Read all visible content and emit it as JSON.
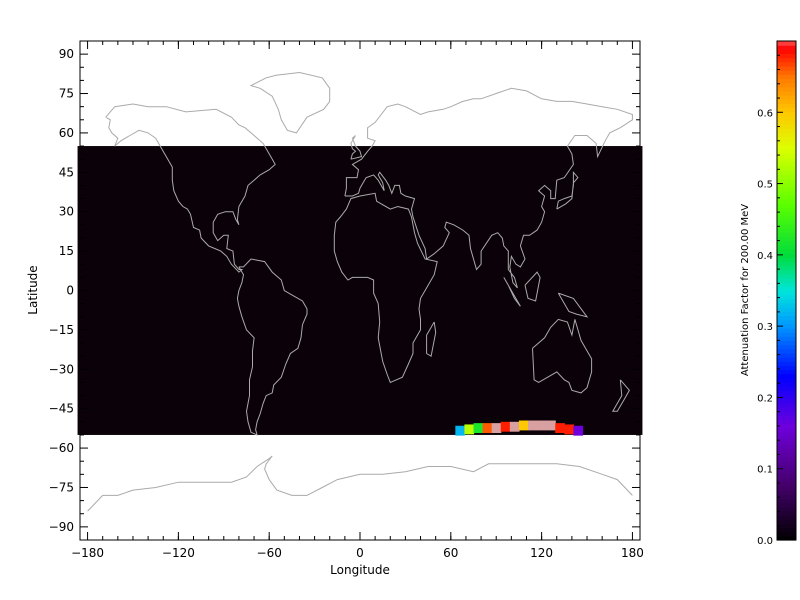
{
  "chart_data": [
    {
      "type": "heatmap",
      "title": "",
      "xlabel": "Longitude",
      "ylabel": "Latitude",
      "xlim": [
        -185,
        185
      ],
      "ylim": [
        -95,
        95
      ],
      "x_ticks": [
        -180,
        -120,
        -60,
        0,
        60,
        120,
        180
      ],
      "x_tick_labels": [
        "−180",
        "−120",
        "−60",
        "0",
        "60",
        "120",
        "180"
      ],
      "y_ticks": [
        90,
        75,
        60,
        45,
        30,
        15,
        0,
        -15,
        -30,
        -45,
        -60,
        -75,
        -90
      ],
      "y_tick_labels": [
        "90",
        "75",
        "60",
        "45",
        "30",
        "15",
        "0",
        "−15",
        "−30",
        "−45",
        "−60",
        "−75",
        "−90"
      ],
      "data_region": {
        "lon": [
          -180,
          180
        ],
        "lat": [
          -55,
          55
        ]
      },
      "background_value": 0.0,
      "cells": [
        {
          "lon": 66,
          "lat": -53,
          "value": 0.32
        },
        {
          "lon": 72,
          "lat": -52.5,
          "value": 0.53
        },
        {
          "lon": 78,
          "lat": -52,
          "value": 0.42
        },
        {
          "lon": 84,
          "lat": -52,
          "value": 0.66
        },
        {
          "lon": 90,
          "lat": -52,
          "value": 0.7
        },
        {
          "lon": 96,
          "lat": -51.5,
          "value": 0.68
        },
        {
          "lon": 102,
          "lat": -51.5,
          "value": 0.69
        },
        {
          "lon": 108,
          "lat": -51,
          "value": 0.6
        },
        {
          "lon": 114,
          "lat": -51,
          "value": 0.69
        },
        {
          "lon": 120,
          "lat": -51,
          "value": 0.7
        },
        {
          "lon": 126,
          "lat": -51,
          "value": 0.7
        },
        {
          "lon": 132,
          "lat": -52,
          "value": 0.68
        },
        {
          "lon": 138,
          "lat": -52.5,
          "value": 0.68
        },
        {
          "lon": 144,
          "lat": -53,
          "value": 0.16
        }
      ],
      "grid": false,
      "legend": "none"
    },
    {
      "type": "heatmap",
      "title": "Attenuation Factor for 200.00 MeV",
      "ylim": [
        0,
        0.7
      ],
      "tick_values": [
        0.0,
        0.1,
        0.2,
        0.3,
        0.4,
        0.5,
        0.6
      ],
      "tick_labels": [
        "0.0",
        "0.1",
        "0.2",
        "0.3",
        "0.4",
        "0.5",
        "0.6"
      ],
      "colormap": "rainbow+white",
      "colors": {
        "background": "#0a0208",
        "coastline": "#aaaaaa"
      }
    }
  ]
}
